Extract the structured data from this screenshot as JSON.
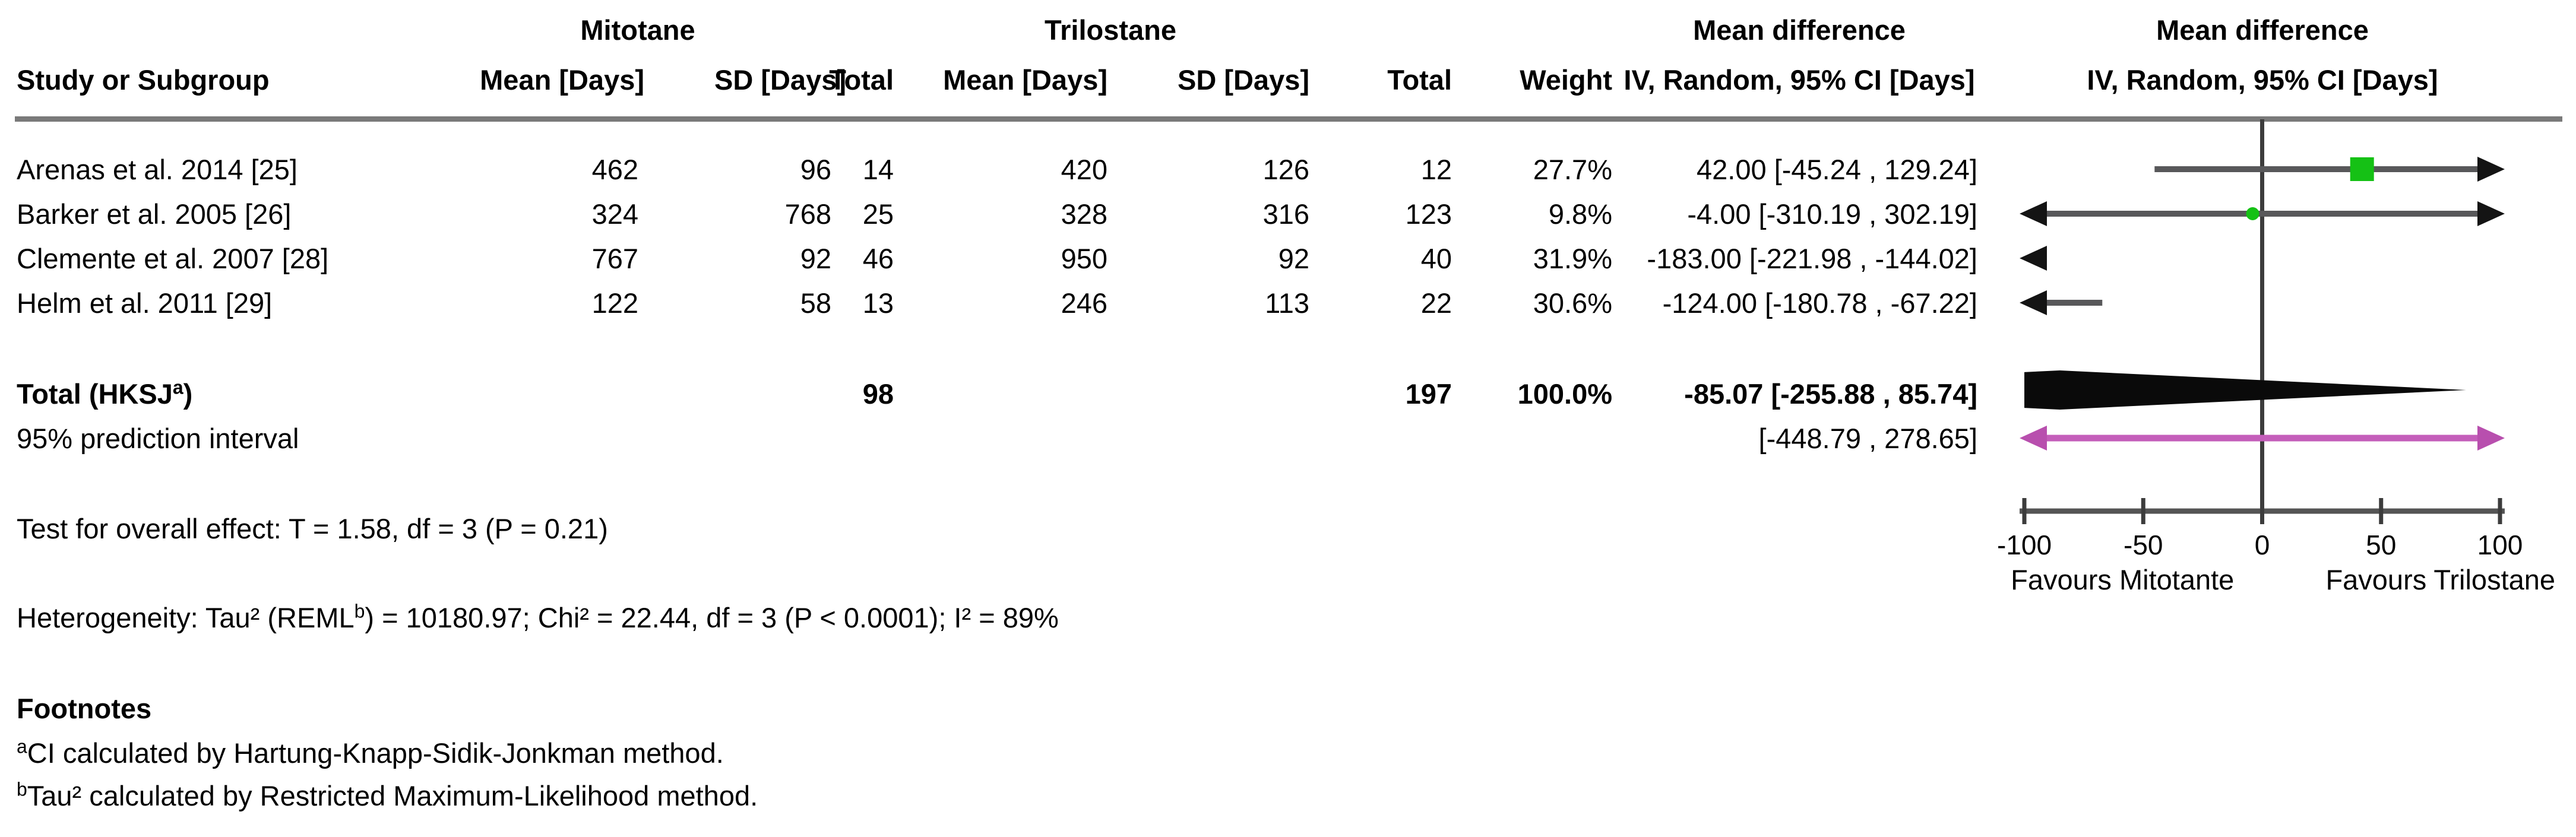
{
  "header": {
    "study": "Study or Subgroup",
    "group1": "Mitotane",
    "group2": "Trilostane",
    "mean": "Mean [Days]",
    "sd": "SD [Days]",
    "total": "Total",
    "weight": "Weight",
    "md": "Mean difference",
    "iv": "IV, Random, 95% CI [Days]"
  },
  "rows": [
    {
      "study": "Arenas et al. 2014 [25]",
      "m_mean": "462",
      "m_sd": "96",
      "m_total": "14",
      "t_mean": "420",
      "t_sd": "126",
      "t_total": "12",
      "weight": "27.7%",
      "ci": "42.00 [-45.24 , 129.24]"
    },
    {
      "study": "Barker et al. 2005 [26]",
      "m_mean": "324",
      "m_sd": "768",
      "m_total": "25",
      "t_mean": "328",
      "t_sd": "316",
      "t_total": "123",
      "weight": "9.8%",
      "ci": "-4.00 [-310.19 , 302.19]"
    },
    {
      "study": "Clemente et al. 2007 [28]",
      "m_mean": "767",
      "m_sd": "92",
      "m_total": "46",
      "t_mean": "950",
      "t_sd": "92",
      "t_total": "40",
      "weight": "31.9%",
      "ci": "-183.00 [-221.98 , -144.02]"
    },
    {
      "study": "Helm et al. 2011 [29]",
      "m_mean": "122",
      "m_sd": "58",
      "m_total": "13",
      "t_mean": "246",
      "t_sd": "113",
      "t_total": "22",
      "weight": "30.6%",
      "ci": "-124.00 [-180.78 , -67.22]"
    }
  ],
  "totals": {
    "label_pre": "Total (HKSJ",
    "label_sup": "a",
    "label_post": ")",
    "m_total": "98",
    "t_total": "197",
    "weight": "100.0%",
    "ci": "-85.07 [-255.88 , 85.74]",
    "prediction_label": "95% prediction interval",
    "prediction_ci": "[-448.79 , 278.65]"
  },
  "stats": {
    "overall": "Test for overall effect: T = 1.58, df = 3 (P = 0.21)",
    "het_pre": "Heterogeneity: Tau² (REML",
    "het_sup": "b",
    "het_post": ") = 10180.97; Chi² = 22.44, df = 3 (P < 0.0001); I² = 89%"
  },
  "footnotes": {
    "title": "Footnotes",
    "a_sup": "a",
    "a_text": "CI calculated by Hartung-Knapp-Sidik-Jonkman method.",
    "b_sup": "b",
    "b_text": "Tau² calculated by Restricted Maximum-Likelihood method."
  },
  "colors": {
    "marker_green": "#15c115",
    "prediction_pink": "#c45eba",
    "prediction_head": "#b84fae",
    "line_gray": "#58585a",
    "arrow_black": "#141414",
    "diamond_black": "#0a0a0a",
    "axis_gray": "#555555",
    "tick_dark": "#3c3c3c"
  },
  "chart_data": {
    "type": "forest",
    "title": "Mean difference, IV, Random, 95% CI [Days]",
    "xlim": [
      -100,
      100
    ],
    "ticks": [
      -100,
      -50,
      0,
      50,
      100
    ],
    "tick_labels": [
      "-100",
      "-50",
      "0",
      "50",
      "100"
    ],
    "favours_left": "Favours Mitotante",
    "favours_right": "Favours Trilostane",
    "studies": [
      {
        "label": "Arenas et al. 2014 [25]",
        "estimate": 42.0,
        "ci_lower": -45.24,
        "ci_upper": 129.24,
        "weight_pct": 27.7,
        "marker": "square"
      },
      {
        "label": "Barker et al. 2005 [26]",
        "estimate": -4.0,
        "ci_lower": -310.19,
        "ci_upper": 302.19,
        "weight_pct": 9.8,
        "marker": "circle"
      },
      {
        "label": "Clemente et al. 2007 [28]",
        "estimate": -183.0,
        "ci_lower": -221.98,
        "ci_upper": -144.02,
        "weight_pct": 31.9,
        "marker": "square"
      },
      {
        "label": "Helm et al. 2011 [29]",
        "estimate": -124.0,
        "ci_lower": -180.78,
        "ci_upper": -67.22,
        "weight_pct": 30.6,
        "marker": "square"
      }
    ],
    "total": {
      "label": "Total (HKSJa)",
      "estimate": -85.07,
      "ci_lower": -255.88,
      "ci_upper": 85.74,
      "weight_pct": 100.0
    },
    "prediction_interval": {
      "ci_lower": -448.79,
      "ci_upper": 278.65
    }
  }
}
